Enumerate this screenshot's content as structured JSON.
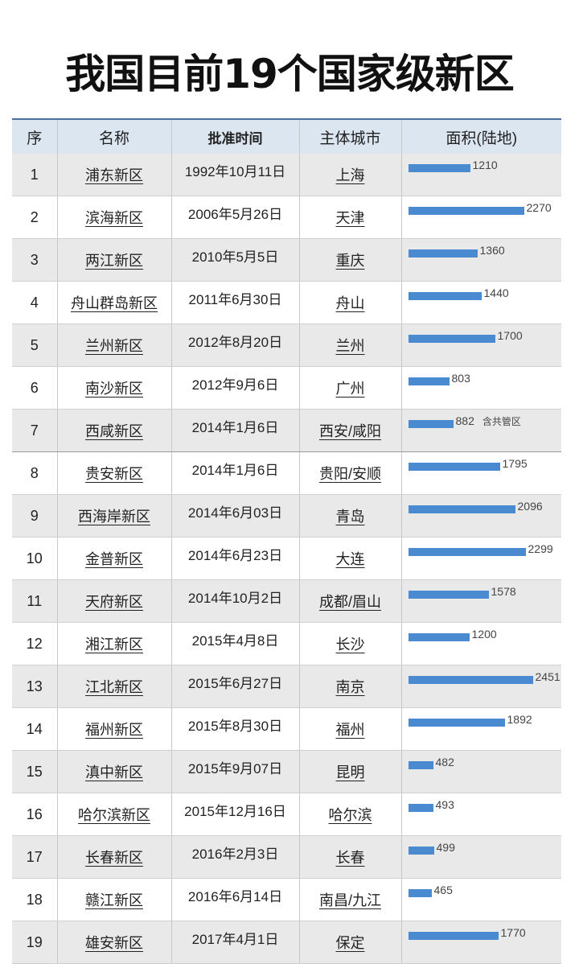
{
  "title": "我国目前19个国家级新区",
  "headers": [
    "序",
    "名称",
    "批准时间",
    "主体城市",
    "面积(陆地)"
  ],
  "bar_color": "#4a8ad0",
  "rows": [
    {
      "no": "1",
      "name": "浦东新区",
      "date": "1992年10月11日",
      "city": "上海",
      "area": 1210
    },
    {
      "no": "2",
      "name": "滨海新区",
      "date": "2006年5月26日",
      "city": "天津",
      "area": 2270
    },
    {
      "no": "3",
      "name": "两江新区",
      "date": "2010年5月5日",
      "city": "重庆",
      "area": 1360
    },
    {
      "no": "4",
      "name": "舟山群岛新区",
      "date": "2011年6月30日",
      "city": "舟山",
      "area": 1440
    },
    {
      "no": "5",
      "name": "兰州新区",
      "date": "2012年8月20日",
      "city": "兰州",
      "area": 1700
    },
    {
      "no": "6",
      "name": "南沙新区",
      "date": "2012年9月6日",
      "city": "广州",
      "area": 803
    },
    {
      "no": "7",
      "name": "西咸新区",
      "date": "2014年1月6日",
      "city": "西安/咸阳",
      "area": 882,
      "note": "含共管区"
    },
    {
      "no": "8",
      "name": "贵安新区",
      "date": "2014年1月6日",
      "city": "贵阳/安顺",
      "area": 1795
    },
    {
      "no": "9",
      "name": "西海岸新区",
      "date": "2014年6月03日",
      "city": "青岛",
      "area": 2096
    },
    {
      "no": "10",
      "name": "金普新区",
      "date": "2014年6月23日",
      "city": "大连",
      "area": 2299
    },
    {
      "no": "11",
      "name": "天府新区",
      "date": "2014年10月2日",
      "city": "成都/眉山",
      "area": 1578
    },
    {
      "no": "12",
      "name": "湘江新区",
      "date": "2015年4月8日",
      "city": "长沙",
      "area": 1200
    },
    {
      "no": "13",
      "name": "江北新区",
      "date": "2015年6月27日",
      "city": "南京",
      "area": 2451
    },
    {
      "no": "14",
      "name": "福州新区",
      "date": "2015年8月30日",
      "city": "福州",
      "area": 1892
    },
    {
      "no": "15",
      "name": "滇中新区",
      "date": "2015年9月07日",
      "city": "昆明",
      "area": 482
    },
    {
      "no": "16",
      "name": "哈尔滨新区",
      "date": "2015年12月16日",
      "city": "哈尔滨",
      "area": 493
    },
    {
      "no": "17",
      "name": "长春新区",
      "date": "2016年2月3日",
      "city": "长春",
      "area": 499
    },
    {
      "no": "18",
      "name": "赣江新区",
      "date": "2016年6月14日",
      "city": "南昌/九江",
      "area": 465
    },
    {
      "no": "19",
      "name": "雄安新区",
      "date": "2017年4月1日",
      "city": "保定",
      "area": 1770
    }
  ]
}
